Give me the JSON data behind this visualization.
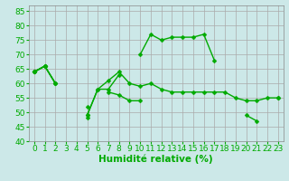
{
  "x": [
    0,
    1,
    2,
    3,
    4,
    5,
    6,
    7,
    8,
    9,
    10,
    11,
    12,
    13,
    14,
    15,
    16,
    17,
    18,
    19,
    20,
    21,
    22,
    23
  ],
  "lines": [
    [
      64,
      66,
      60,
      null,
      null,
      48,
      null,
      null,
      null,
      null,
      null,
      null,
      null,
      null,
      null,
      null,
      null,
      null,
      null,
      null,
      null,
      null,
      null,
      null
    ],
    [
      64,
      66,
      60,
      null,
      null,
      52,
      null,
      57,
      56,
      54,
      54,
      null,
      null,
      null,
      null,
      null,
      null,
      null,
      null,
      null,
      null,
      null,
      null,
      null
    ],
    [
      64,
      66,
      60,
      null,
      null,
      49,
      58,
      61,
      64,
      60,
      59,
      60,
      58,
      57,
      57,
      57,
      57,
      57,
      57,
      55,
      54,
      54,
      55,
      55
    ],
    [
      64,
      66,
      null,
      null,
      null,
      49,
      58,
      58,
      63,
      null,
      70,
      77,
      75,
      76,
      76,
      76,
      77,
      68,
      null,
      null,
      null,
      null,
      null,
      null
    ],
    [
      64,
      null,
      null,
      null,
      null,
      null,
      null,
      null,
      null,
      null,
      null,
      null,
      null,
      null,
      null,
      null,
      null,
      null,
      null,
      null,
      49,
      47,
      null,
      55
    ]
  ],
  "background_color": "#cce8e8",
  "grid_color": "#aaaaaa",
  "line_color": "#00aa00",
  "marker": "D",
  "markersize": 2.5,
  "linewidth": 1.0,
  "xlabel": "Humidité relative (%)",
  "ylim": [
    40,
    87
  ],
  "xlim": [
    -0.5,
    23.5
  ],
  "yticks": [
    40,
    45,
    50,
    55,
    60,
    65,
    70,
    75,
    80,
    85
  ],
  "xticks": [
    0,
    1,
    2,
    3,
    4,
    5,
    6,
    7,
    8,
    9,
    10,
    11,
    12,
    13,
    14,
    15,
    16,
    17,
    18,
    19,
    20,
    21,
    22,
    23
  ],
  "xlabel_fontsize": 7.5,
  "tick_fontsize": 6.5
}
